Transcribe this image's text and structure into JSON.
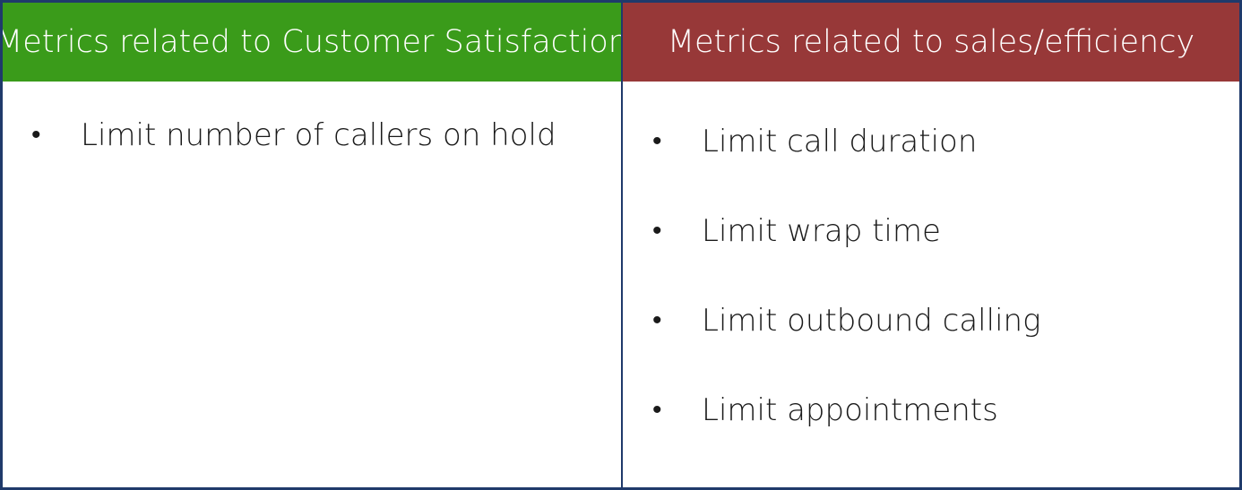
{
  "table": {
    "left": {
      "header": "Metrics related to Customer Satisfaction",
      "header_color": "#3a9b1a",
      "items": [
        "Limit number of callers on hold"
      ]
    },
    "right": {
      "header": "Metrics related to sales/efficiency",
      "header_color": "#973838",
      "items": [
        "Limit call duration",
        "Limit wrap time",
        "Limit outbound calling",
        "Limit appointments"
      ]
    },
    "bullet_glyph": "•",
    "border_color": "#1f3a6b"
  }
}
